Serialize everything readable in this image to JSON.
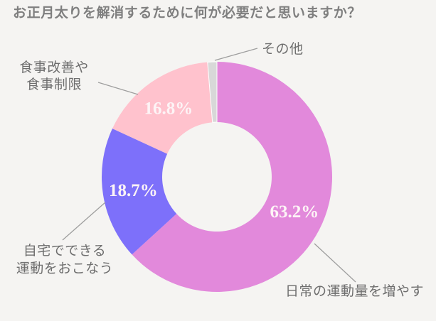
{
  "title": "お正月太りを解消するために何が必要だと思いますか？",
  "colors": {
    "background": "#f5f4f2",
    "title_text": "#7f7f7f",
    "label_text": "#6e6e6e",
    "leader_line": "#9e9e9e",
    "pct_text": "#fdf4f6",
    "segment_separator": "#ffffff"
  },
  "chart_data": {
    "type": "pie",
    "subtype": "donut",
    "title": "お正月太りを解消するために何が必要だと思いますか？",
    "legend_position": "none",
    "start_angle_deg": -90,
    "direction": "clockwise",
    "unit": "%",
    "segments": [
      {
        "label": "日常の運動量を増やす",
        "value": 63.2,
        "pct_label": "63.2%",
        "color": "#e289db",
        "outlined": false
      },
      {
        "label": "自宅でできる運動をおこなう",
        "value": 18.7,
        "pct_label": "18.7%",
        "color": "#7d70fa",
        "outlined": false
      },
      {
        "label": "食事改善や食事制限",
        "value": 16.8,
        "pct_label": "16.8%",
        "color": "#ffc2cd",
        "outlined": false
      },
      {
        "label": "その他",
        "value": 1.3,
        "pct_label": "",
        "color": "#d8d8d8",
        "outlined": true
      }
    ]
  },
  "labels": {
    "other": "その他",
    "diet_line1": "食事改善や",
    "diet_line2": "食事制限",
    "home_line1": "自宅でできる",
    "home_line2": "運動をおこなう",
    "daily": "日常の運動量を増やす"
  }
}
